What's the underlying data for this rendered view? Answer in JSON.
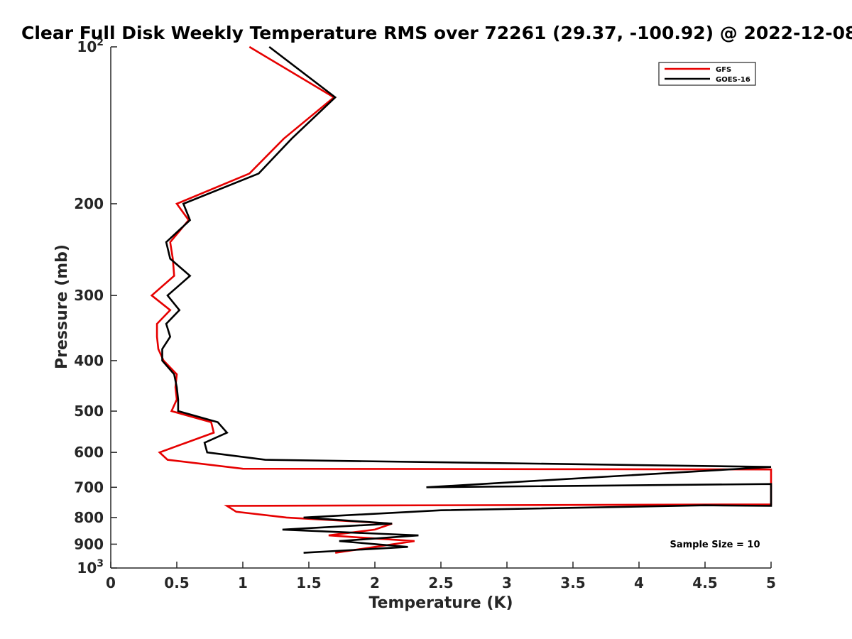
{
  "chart_data": {
    "type": "line",
    "title": "Clear Full Disk Weekly Temperature RMS over 72261 (29.37, -100.92) @ 2022-12-08",
    "xlabel": "Temperature (K)",
    "ylabel": "Pressure (mb)",
    "xlim": [
      0,
      5
    ],
    "ylim": [
      100,
      1000
    ],
    "y_scale": "log",
    "y_reversed": true,
    "x_ticks": [
      "0",
      "0.5",
      "1",
      "1.5",
      "2",
      "2.5",
      "3",
      "3.5",
      "4",
      "4.5",
      "5"
    ],
    "y_ticks": [
      {
        "value": 100,
        "label": "10",
        "sup": "2"
      },
      {
        "value": 200,
        "label": "200",
        "sup": ""
      },
      {
        "value": 300,
        "label": "300",
        "sup": ""
      },
      {
        "value": 400,
        "label": "400",
        "sup": ""
      },
      {
        "value": 500,
        "label": "500",
        "sup": ""
      },
      {
        "value": 600,
        "label": "600",
        "sup": ""
      },
      {
        "value": 700,
        "label": "700",
        "sup": ""
      },
      {
        "value": 800,
        "label": "800",
        "sup": ""
      },
      {
        "value": 900,
        "label": "900",
        "sup": ""
      },
      {
        "value": 1000,
        "label": "10",
        "sup": "3"
      }
    ],
    "grid": false,
    "legend_position": "top-right",
    "annotation": "Sample Size = 10",
    "series": [
      {
        "name": "GFS",
        "color": "#e60000",
        "points": [
          [
            1.05,
            100
          ],
          [
            1.69,
            125
          ],
          [
            1.31,
            150
          ],
          [
            1.05,
            175
          ],
          [
            0.5,
            200
          ],
          [
            0.59,
            215
          ],
          [
            0.45,
            237
          ],
          [
            0.47,
            255
          ],
          [
            0.48,
            275
          ],
          [
            0.31,
            300
          ],
          [
            0.45,
            320
          ],
          [
            0.35,
            340
          ],
          [
            0.35,
            360
          ],
          [
            0.36,
            380
          ],
          [
            0.4,
            400
          ],
          [
            0.5,
            425
          ],
          [
            0.49,
            450
          ],
          [
            0.5,
            475
          ],
          [
            0.46,
            500
          ],
          [
            0.76,
            525
          ],
          [
            0.78,
            550
          ],
          [
            0.57,
            575
          ],
          [
            0.37,
            600
          ],
          [
            0.43,
            620
          ],
          [
            1.0,
            645
          ],
          [
            5.0,
            647
          ],
          [
            5.0,
            755
          ],
          [
            0.88,
            760
          ],
          [
            0.95,
            780
          ],
          [
            1.33,
            800
          ],
          [
            2.13,
            822
          ],
          [
            2.0,
            844
          ],
          [
            1.65,
            866
          ],
          [
            2.3,
            888
          ],
          [
            2.0,
            911
          ],
          [
            1.7,
            935
          ]
        ]
      },
      {
        "name": "GOES-16",
        "color": "#000000",
        "points": [
          [
            1.2,
            100
          ],
          [
            1.7,
            125
          ],
          [
            1.37,
            150
          ],
          [
            1.12,
            175
          ],
          [
            0.55,
            200
          ],
          [
            0.6,
            215
          ],
          [
            0.42,
            237
          ],
          [
            0.45,
            255
          ],
          [
            0.6,
            275
          ],
          [
            0.43,
            300
          ],
          [
            0.52,
            320
          ],
          [
            0.42,
            340
          ],
          [
            0.45,
            360
          ],
          [
            0.39,
            380
          ],
          [
            0.39,
            400
          ],
          [
            0.48,
            425
          ],
          [
            0.5,
            450
          ],
          [
            0.51,
            475
          ],
          [
            0.51,
            500
          ],
          [
            0.81,
            525
          ],
          [
            0.88,
            550
          ],
          [
            0.71,
            575
          ],
          [
            0.73,
            600
          ],
          [
            1.17,
            620
          ],
          [
            5.0,
            640
          ],
          [
            2.39,
            700
          ],
          [
            5.0,
            690
          ],
          [
            5.0,
            705
          ],
          [
            5.0,
            760
          ],
          [
            4.5,
            758
          ],
          [
            2.5,
            775
          ],
          [
            1.46,
            800
          ],
          [
            2.13,
            822
          ],
          [
            1.3,
            844
          ],
          [
            2.33,
            866
          ],
          [
            1.73,
            888
          ],
          [
            2.25,
            911
          ],
          [
            1.46,
            935
          ]
        ]
      }
    ]
  }
}
